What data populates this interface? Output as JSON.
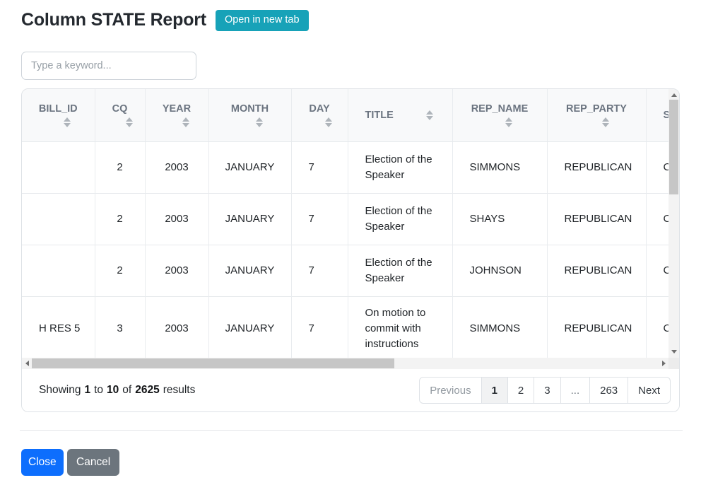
{
  "header": {
    "title": "Column STATE Report",
    "open_in_new_tab_label": "Open in new tab"
  },
  "search": {
    "placeholder": "Type a keyword...",
    "value": ""
  },
  "table": {
    "columns": [
      {
        "key": "bill_id",
        "label": "BILL_ID",
        "sortable": true
      },
      {
        "key": "cq",
        "label": "CQ",
        "sortable": true
      },
      {
        "key": "year",
        "label": "YEAR",
        "sortable": true
      },
      {
        "key": "month",
        "label": "MONTH",
        "sortable": true
      },
      {
        "key": "day",
        "label": "DAY",
        "sortable": true
      },
      {
        "key": "title",
        "label": "TITLE",
        "sortable": true
      },
      {
        "key": "rep_name",
        "label": "REP_NAME",
        "sortable": true
      },
      {
        "key": "rep_party",
        "label": "REP_PARTY",
        "sortable": true
      },
      {
        "key": "state",
        "label": "S",
        "sortable": false,
        "clipped": true
      }
    ],
    "rows": [
      [
        "",
        "2",
        "2003",
        "JANUARY",
        "7",
        "Election of the Speaker",
        "SIMMONS",
        "REPUBLICAN",
        "C"
      ],
      [
        "",
        "2",
        "2003",
        "JANUARY",
        "7",
        "Election of the Speaker",
        "SHAYS",
        "REPUBLICAN",
        "C"
      ],
      [
        "",
        "2",
        "2003",
        "JANUARY",
        "7",
        "Election of the Speaker",
        "JOHNSON",
        "REPUBLICAN",
        "C"
      ],
      [
        "H RES 5",
        "3",
        "2003",
        "JANUARY",
        "7",
        "On motion to commit with instructions",
        "SIMMONS",
        "REPUBLICAN",
        "C"
      ]
    ]
  },
  "summary": {
    "showing": "Showing",
    "from": "1",
    "to_word": "to",
    "to": "10",
    "of_word": "of",
    "total": "2625",
    "results_word": "results"
  },
  "pagination": {
    "items": [
      {
        "label": "Previous",
        "kind": "prev",
        "muted": true
      },
      {
        "label": "1",
        "active": true
      },
      {
        "label": "2"
      },
      {
        "label": "3"
      },
      {
        "label": "...",
        "kind": "ellipsis"
      },
      {
        "label": "263"
      },
      {
        "label": "Next",
        "kind": "next"
      }
    ]
  },
  "actions": {
    "close_label": "Close",
    "cancel_label": "Cancel"
  },
  "colors": {
    "teal_accent": "#17a2b8",
    "primary_blue": "#0d6efd",
    "secondary_gray": "#6c757d",
    "border": "#dee2e6",
    "header_text": "#6b7480"
  }
}
